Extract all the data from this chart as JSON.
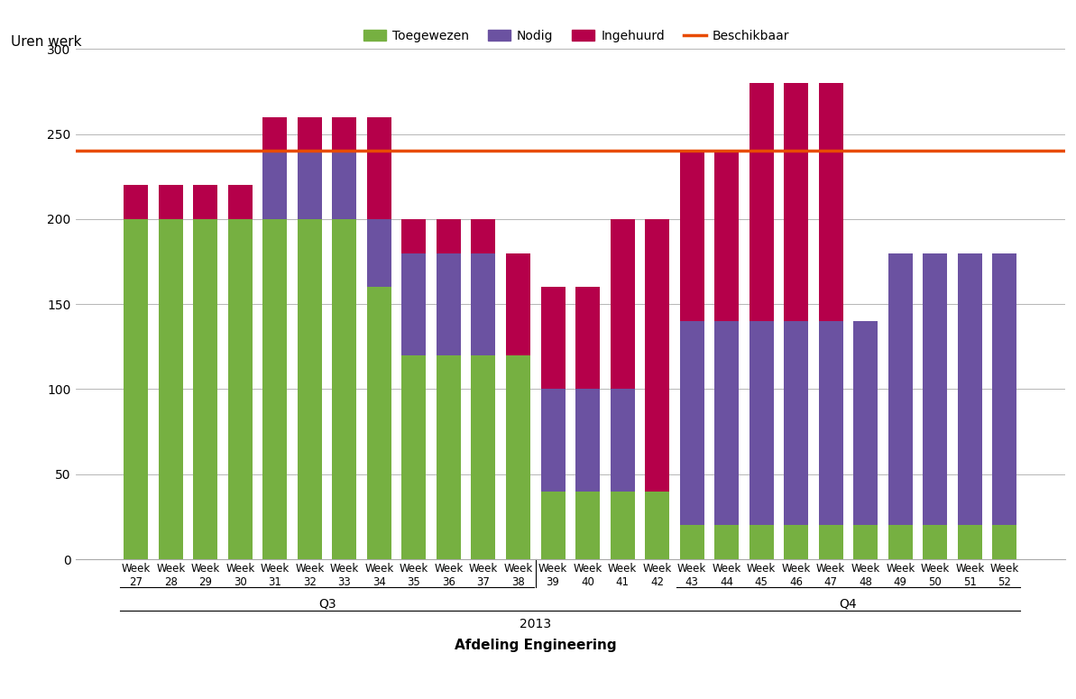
{
  "weeks": [
    27,
    28,
    29,
    30,
    31,
    32,
    33,
    34,
    35,
    36,
    37,
    38,
    39,
    40,
    41,
    42,
    43,
    44,
    45,
    46,
    47,
    48,
    49,
    50,
    51,
    52
  ],
  "toegewezen": [
    200,
    200,
    200,
    200,
    200,
    200,
    200,
    160,
    120,
    120,
    120,
    120,
    40,
    40,
    40,
    40,
    20,
    20,
    20,
    20,
    20,
    20,
    20,
    20,
    20,
    20
  ],
  "nodig": [
    0,
    0,
    0,
    0,
    40,
    40,
    40,
    40,
    60,
    60,
    60,
    0,
    60,
    60,
    60,
    0,
    120,
    120,
    120,
    120,
    120,
    120,
    160,
    160,
    160,
    160
  ],
  "ingehuurd": [
    20,
    20,
    20,
    20,
    20,
    20,
    20,
    60,
    20,
    20,
    20,
    60,
    60,
    60,
    100,
    160,
    100,
    100,
    140,
    140,
    140,
    0,
    0,
    0,
    0,
    0
  ],
  "beschikbaar": 240,
  "ylim": [
    0,
    300
  ],
  "yticks": [
    0,
    50,
    100,
    150,
    200,
    250,
    300
  ],
  "ylabel": "Uren werk",
  "xlabel": "Afdeling Engineering",
  "legend_labels": [
    "Toegewezen",
    "Nodig",
    "Ingehuurd",
    "Beschikbaar"
  ],
  "colors": {
    "toegewezen": "#76b041",
    "nodig": "#6b52a1",
    "ingehuurd": "#b5004a",
    "beschikbaar": "#e84b00"
  },
  "year_label": "2013",
  "q3_label": "Q3",
  "q4_label": "Q4"
}
